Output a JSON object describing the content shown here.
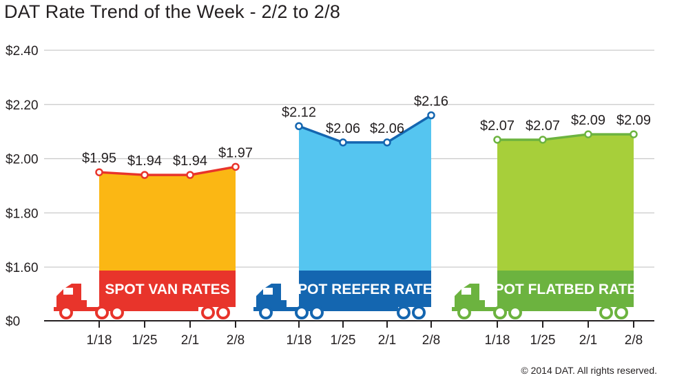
{
  "header": {
    "title": "DAT Rate Trend of the Week - 2/2 to 2/8"
  },
  "footer": {
    "copyright": "© 2014 DAT. All rights reserved."
  },
  "chart_data": {
    "type": "area",
    "title": "DAT Rate Trend of the Week - 2/2 to 2/8",
    "xlabel": "",
    "ylabel": "",
    "y_ticks": [
      {
        "label": "$0",
        "value": 0
      },
      {
        "label": "$1.60",
        "value": 1.6
      },
      {
        "label": "$1.80",
        "value": 1.8
      },
      {
        "label": "$2.00",
        "value": 2.0
      },
      {
        "label": "$2.20",
        "value": 2.2
      },
      {
        "label": "$2.40",
        "value": 2.4
      }
    ],
    "axis_break": true,
    "grid": true,
    "categories": [
      "1/18",
      "1/25",
      "2/1",
      "2/8"
    ],
    "series": [
      {
        "name": "SPOT VAN RATES",
        "values": [
          1.95,
          1.94,
          1.94,
          1.97
        ],
        "labels": [
          "$1.95",
          "$1.94",
          "$1.94",
          "$1.97"
        ],
        "area_color": "#fbb714",
        "line_color": "#e8342b",
        "banner_color": "#e8342b"
      },
      {
        "name": "SPOT REEFER RATES",
        "values": [
          2.12,
          2.06,
          2.06,
          2.16
        ],
        "labels": [
          "$2.12",
          "$2.06",
          "$2.06",
          "$2.16"
        ],
        "area_color": "#55c5f0",
        "line_color": "#1466b0",
        "banner_color": "#1466b0"
      },
      {
        "name": "SPOT FLATBED RATES",
        "values": [
          2.07,
          2.07,
          2.09,
          2.09
        ],
        "labels": [
          "$2.07",
          "$2.07",
          "$2.09",
          "$2.09"
        ],
        "area_color": "#a7cf3a",
        "line_color": "#6cb33f",
        "banner_color": "#6cb33f"
      }
    ]
  }
}
